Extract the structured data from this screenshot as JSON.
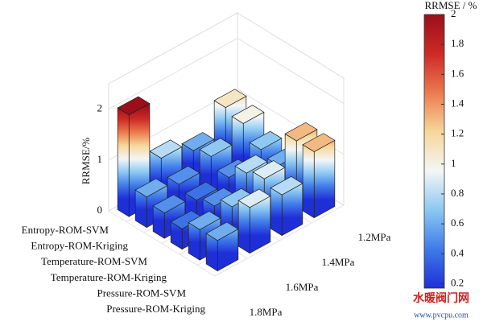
{
  "chart_data": {
    "type": "bar3d",
    "zlabel": "RRMSE/%",
    "categories": [
      "1.2MPa",
      "1.4MPa",
      "1.6MPa",
      "1.8MPa"
    ],
    "series": [
      {
        "name": "Entropy-ROM-SVM",
        "values": [
          1.1,
          0.6,
          0.8,
          2.0
        ]
      },
      {
        "name": "Entropy-ROM-Kriging",
        "values": [
          1.0,
          0.7,
          0.5,
          0.6
        ]
      },
      {
        "name": "Temperature-ROM-SVM",
        "values": [
          0.7,
          0.5,
          0.4,
          0.5
        ]
      },
      {
        "name": "Temperature-ROM-Kriging",
        "values": [
          0.6,
          0.8,
          0.5,
          0.4
        ]
      },
      {
        "name": "Pressure-ROM-SVM",
        "values": [
          1.3,
          0.9,
          0.7,
          0.6
        ]
      },
      {
        "name": "Pressure-ROM-Kriging",
        "values": [
          1.3,
          0.8,
          0.9,
          0.6
        ]
      }
    ],
    "zlim": [
      0,
      2.5
    ],
    "zticks": [
      0,
      1,
      2
    ],
    "grid": true,
    "colorbar": {
      "title": "RRMSE / %",
      "clim": [
        0.17,
        2
      ],
      "ticks": [
        0.2,
        0.4,
        0.6,
        0.8,
        1,
        1.2,
        1.4,
        1.6,
        1.8,
        2
      ],
      "colormap": [
        "#1e2fd8",
        "#3f7be8",
        "#8cc8f2",
        "#f4f6f6",
        "#f6d79a",
        "#ec7a4f",
        "#cc2a25",
        "#9b0f1a"
      ]
    },
    "watermark": {
      "text": "水暖阀门网",
      "url": "www.pvcpu.com"
    }
  }
}
